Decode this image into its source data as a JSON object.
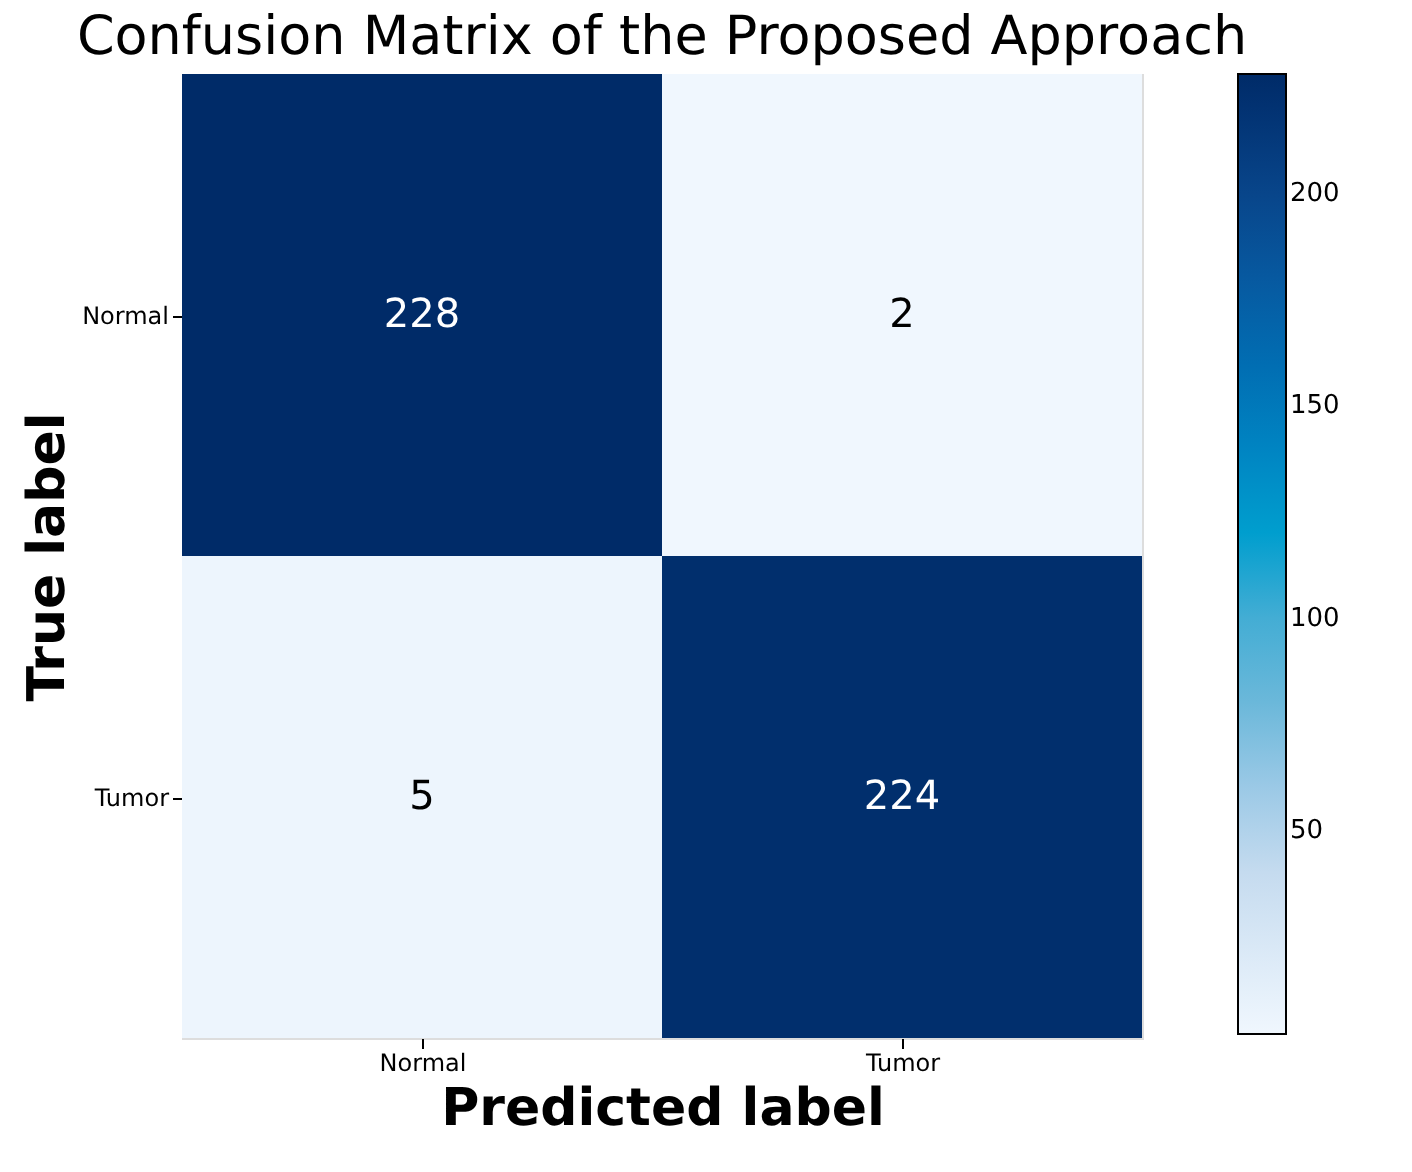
{
  "chart_data": {
    "type": "heatmap",
    "title": "Confusion Matrix of the Proposed Approach",
    "xlabel": "Predicted label",
    "ylabel": "True label",
    "categories": [
      "Normal",
      "Tumor"
    ],
    "y_categories": [
      "Normal",
      "Tumor"
    ],
    "cells": [
      [
        228,
        2
      ],
      [
        5,
        224
      ]
    ],
    "data_labels": true,
    "clim": [
      2,
      228
    ],
    "cticks": [
      50,
      100,
      150,
      200
    ]
  }
}
